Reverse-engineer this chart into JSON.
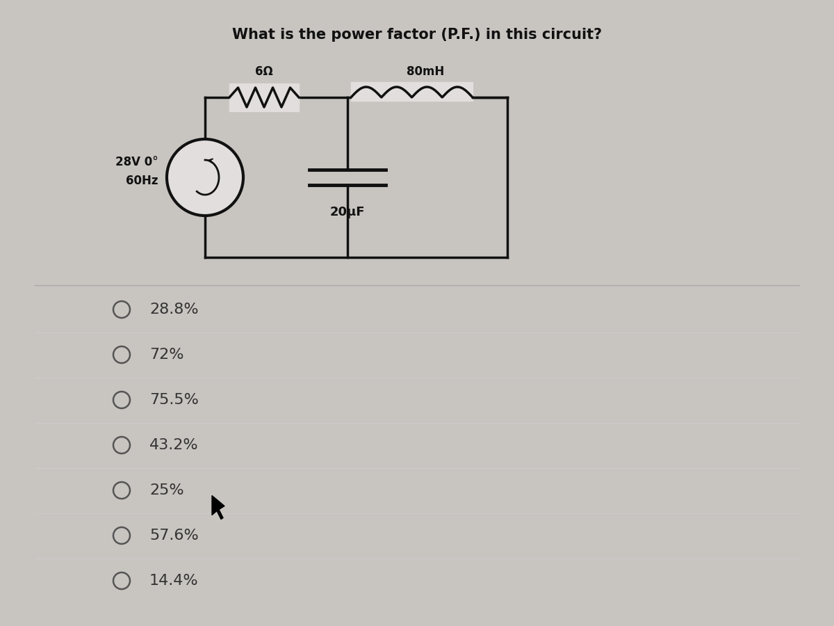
{
  "title": "What is the power factor (P.F.) in this circuit?",
  "title_fontsize": 15,
  "options": [
    "28.8%",
    "72%",
    "75.5%",
    "43.2%",
    "25%",
    "57.6%",
    "14.4%"
  ],
  "bg_color": "#c8c4c0",
  "card_color": "#e2dedd",
  "text_color": "#111111",
  "line_color": "#999999",
  "circuit": {
    "R_label": "6Ω",
    "L_label": "80mH",
    "C_label": "20μF",
    "V_label": "28V",
    "angle_label": "0°",
    "f_label": "60Hz"
  }
}
